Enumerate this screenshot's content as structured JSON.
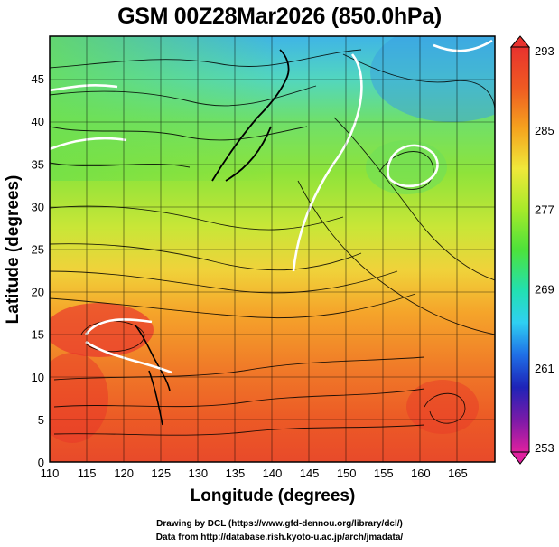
{
  "title": "GSM 00Z28Mar2026 (850.0hPa)",
  "axes": {
    "xlabel": "Longitude (degrees)",
    "ylabel": "Latitude  (degrees)",
    "xrange": [
      110,
      170
    ],
    "yrange": [
      0,
      50
    ],
    "xticks": [
      "110",
      "115",
      "120",
      "125",
      "130",
      "135",
      "140",
      "145",
      "150",
      "155",
      "160",
      "165"
    ],
    "yticks": [
      "0",
      "5",
      "10",
      "15",
      "20",
      "25",
      "30",
      "35",
      "40",
      "45"
    ]
  },
  "colorbar": {
    "labels": [
      "293",
      "285",
      "277",
      "269",
      "261",
      "253"
    ],
    "range": [
      253,
      293
    ],
    "colors": [
      "#e0209f",
      "#7a1aa8",
      "#1e23b8",
      "#1f6fe6",
      "#2fd0f2",
      "#22e0b0",
      "#4de23a",
      "#a8ea2a",
      "#f0e83a",
      "#f5a21e",
      "#ef5a22",
      "#e8322e"
    ]
  },
  "credits": {
    "line1": "Drawing by DCL (https://www.gfd-dennou.org/library/dcl/)",
    "line2": "Data from http://database.rish.kyoto-u.ac.jp/arch/jmadata/"
  }
}
